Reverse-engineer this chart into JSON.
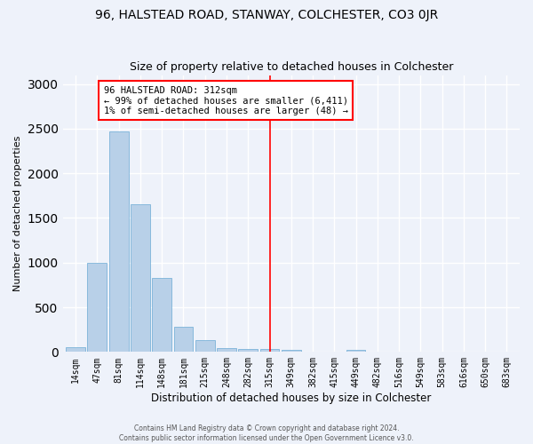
{
  "title1": "96, HALSTEAD ROAD, STANWAY, COLCHESTER, CO3 0JR",
  "title2": "Size of property relative to detached houses in Colchester",
  "xlabel": "Distribution of detached houses by size in Colchester",
  "ylabel": "Number of detached properties",
  "annotation_title": "96 HALSTEAD ROAD: 312sqm",
  "annotation_line1": "← 99% of detached houses are smaller (6,411)",
  "annotation_line2": "1% of semi-detached houses are larger (48) →",
  "footer1": "Contains HM Land Registry data © Crown copyright and database right 2024.",
  "footer2": "Contains public sector information licensed under the Open Government Licence v3.0.",
  "bar_labels": [
    "14sqm",
    "47sqm",
    "81sqm",
    "114sqm",
    "148sqm",
    "181sqm",
    "215sqm",
    "248sqm",
    "282sqm",
    "315sqm",
    "349sqm",
    "382sqm",
    "415sqm",
    "449sqm",
    "482sqm",
    "516sqm",
    "549sqm",
    "583sqm",
    "616sqm",
    "650sqm",
    "683sqm"
  ],
  "bar_values": [
    50,
    1000,
    2470,
    1650,
    830,
    280,
    130,
    40,
    30,
    30,
    20,
    0,
    0,
    20,
    0,
    0,
    0,
    0,
    0,
    0,
    0
  ],
  "bar_color": "#b8d0e8",
  "bar_edge_color": "#6aaad4",
  "vline_x_index": 9,
  "vline_color": "red",
  "ylim": [
    0,
    3100
  ],
  "background_color": "#eef2fa",
  "grid_color": "#ffffff",
  "title1_fontsize": 10,
  "title2_fontsize": 9,
  "xlabel_fontsize": 8.5,
  "ylabel_fontsize": 8,
  "annotation_fontsize": 7.5,
  "tick_fontsize": 7
}
